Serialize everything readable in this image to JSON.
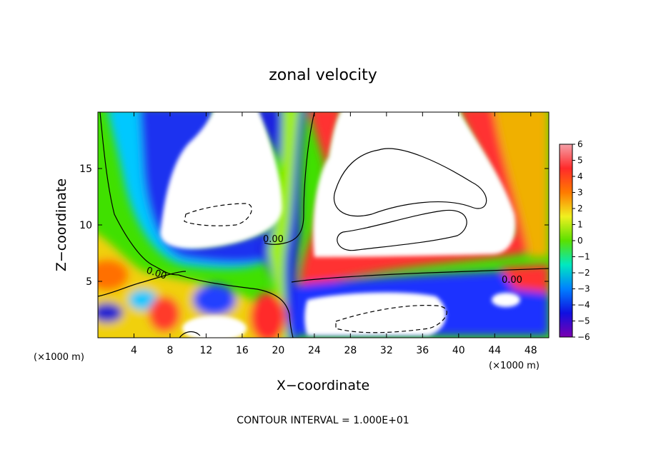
{
  "chart_data": {
    "type": "heatmap",
    "title": "zonal velocity",
    "xlabel": "X−coordinate",
    "ylabel": "Z−coordinate",
    "x_unit": "(×1000 m)",
    "z_unit": "(×1000 m)",
    "xlim": [
      0,
      50
    ],
    "ylim": [
      0,
      20
    ],
    "x_ticks": [
      4,
      8,
      12,
      16,
      20,
      24,
      28,
      32,
      36,
      40,
      44,
      48
    ],
    "y_ticks": [
      5,
      10,
      15
    ],
    "colorbar": {
      "min": -6,
      "max": 6,
      "ticks": [
        6,
        5,
        4,
        3,
        2,
        1,
        0,
        -1,
        -2,
        -3,
        -4,
        -5,
        -6
      ],
      "tick_labels": [
        "6",
        "5",
        "4",
        "3",
        "2",
        "1",
        "0",
        "−1",
        "−2",
        "−3",
        "−4",
        "−5",
        "−6"
      ],
      "colors": [
        "#f4a0a8",
        "#ff2a2a",
        "#ff7a00",
        "#f0f020",
        "#5ae000",
        "#00e8c0",
        "#0080ff",
        "#1010e0",
        "#7a00b0"
      ]
    },
    "contour_labels": [
      {
        "text": "0.00",
        "x": 20.0,
        "z": 8.5
      },
      {
        "text": "0.00",
        "x": 7.0,
        "z": 5.8
      },
      {
        "text": "0.00",
        "x": 46.0,
        "z": 5.0
      }
    ],
    "out_of_range": "white",
    "grid": false,
    "footnote": "CONTOUR INTERVAL = 1.000E+01"
  }
}
